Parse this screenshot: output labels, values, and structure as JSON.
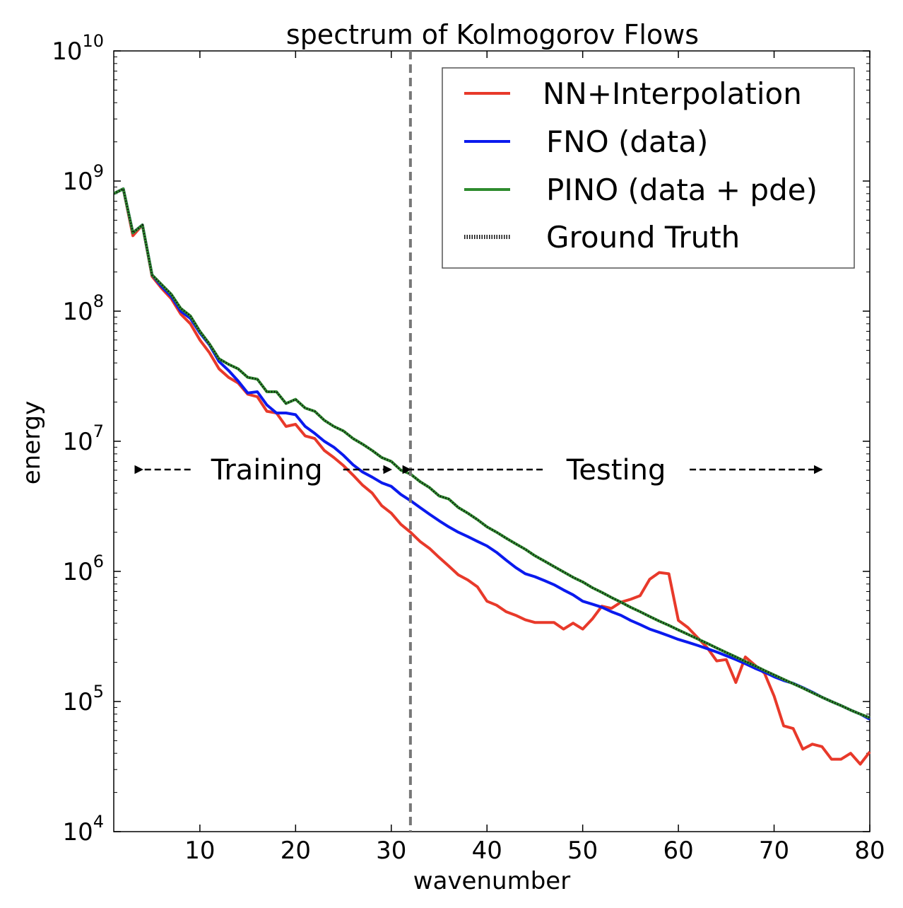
{
  "chart_data": {
    "type": "line",
    "title": "spectrum of Kolmogorov Flows",
    "xlabel": "wavenumber",
    "ylabel": "energy",
    "xlim": [
      1,
      80
    ],
    "ylim": [
      10000,
      10000000000
    ],
    "yscale": "log",
    "x_ticks": [
      10,
      20,
      30,
      40,
      50,
      60,
      70,
      80
    ],
    "y_ticks": [
      {
        "base": "10",
        "exp": "4",
        "value": 10000
      },
      {
        "base": "10",
        "exp": "5",
        "value": 100000
      },
      {
        "base": "10",
        "exp": "6",
        "value": 1000000
      },
      {
        "base": "10",
        "exp": "7",
        "value": 10000000
      },
      {
        "base": "10",
        "exp": "8",
        "value": 100000000
      },
      {
        "base": "10",
        "exp": "9",
        "value": 1000000000
      },
      {
        "base": "10",
        "exp": "10",
        "value": 10000000000
      }
    ],
    "legend_position": "top-right",
    "divider_x": 32,
    "annotations": {
      "training_label": "Training",
      "testing_label": "Testing",
      "training_range": [
        4,
        30
      ],
      "testing_range": [
        32,
        75
      ],
      "y_value": 6000000
    },
    "x": [
      1,
      2,
      3,
      4,
      5,
      6,
      7,
      8,
      9,
      10,
      11,
      12,
      13,
      14,
      15,
      16,
      17,
      18,
      19,
      20,
      21,
      22,
      23,
      24,
      25,
      26,
      27,
      28,
      29,
      30,
      31,
      32,
      33,
      34,
      35,
      36,
      37,
      38,
      39,
      40,
      41,
      42,
      43,
      44,
      45,
      46,
      47,
      48,
      49,
      50,
      51,
      52,
      53,
      54,
      55,
      56,
      57,
      58,
      59,
      60,
      61,
      62,
      63,
      64,
      65,
      66,
      67,
      68,
      69,
      70,
      71,
      72,
      73,
      74,
      75,
      76,
      77,
      78,
      79,
      80
    ],
    "series": [
      {
        "name": "NN+Interpolation",
        "color": "#e8392a",
        "style": "solid",
        "values": [
          800000000,
          870000000,
          380000000,
          460000000,
          185000000,
          150000000,
          125000000,
          95000000,
          80000000,
          60000000,
          48000000,
          36000000,
          31000000,
          28000000,
          23000000,
          22000000,
          17000000,
          16500000,
          13000000,
          13500000,
          11000000,
          10500000,
          8500000,
          7500000,
          6500000,
          5500000,
          4600000,
          4000000,
          3200000,
          2800000,
          2300000,
          2000000,
          1700000,
          1500000,
          1280000,
          1100000,
          940000,
          860000,
          760000,
          590000,
          550000,
          490000,
          460000,
          425000,
          405000,
          405000,
          405000,
          360000,
          400000,
          360000,
          430000,
          540000,
          520000,
          580000,
          610000,
          650000,
          870000,
          980000,
          960000,
          420000,
          370000,
          310000,
          260000,
          205000,
          210000,
          140000,
          220000,
          190000,
          165000,
          110000,
          65000,
          62000,
          43000,
          47000,
          45000,
          36000,
          36000,
          40000,
          33000,
          41000
        ]
      },
      {
        "name": "FNO (data)",
        "color": "#0a1aee",
        "style": "solid",
        "values": [
          800000000,
          870000000,
          400000000,
          460000000,
          190000000,
          155000000,
          130000000,
          100000000,
          88000000,
          68000000,
          55000000,
          41000000,
          35000000,
          29000000,
          23500000,
          24000000,
          19000000,
          16500000,
          16500000,
          16000000,
          13000000,
          11500000,
          10000000,
          9000000,
          7800000,
          6600000,
          5800000,
          5300000,
          4800000,
          4500000,
          3900000,
          3500000,
          3100000,
          2750000,
          2450000,
          2200000,
          2000000,
          1850000,
          1700000,
          1570000,
          1400000,
          1220000,
          1070000,
          960000,
          910000,
          850000,
          790000,
          720000,
          660000,
          590000,
          560000,
          530000,
          490000,
          460000,
          420000,
          390000,
          360000,
          340000,
          320000,
          300000,
          285000,
          270000,
          255000,
          240000,
          225000,
          210000,
          195000,
          180000,
          168000,
          155000,
          145000,
          138000,
          128000,
          118000,
          108000,
          100000,
          93000,
          86000,
          80000,
          73000
        ]
      },
      {
        "name": "PINO (data + pde)",
        "color": "#2e8b2e",
        "style": "solid",
        "values": [
          800000000,
          870000000,
          400000000,
          460000000,
          190000000,
          160000000,
          135000000,
          105000000,
          92000000,
          70000000,
          56000000,
          43000000,
          39000000,
          36000000,
          31000000,
          30000000,
          24000000,
          24000000,
          19500000,
          21000000,
          18000000,
          17000000,
          14500000,
          13000000,
          12000000,
          10500000,
          9500000,
          8500000,
          7500000,
          7000000,
          6000000,
          5600000,
          4900000,
          4400000,
          3800000,
          3600000,
          3100000,
          2800000,
          2500000,
          2200000,
          2000000,
          1800000,
          1630000,
          1480000,
          1320000,
          1200000,
          1090000,
          990000,
          900000,
          830000,
          750000,
          690000,
          630000,
          580000,
          530000,
          490000,
          450000,
          415000,
          385000,
          355000,
          328000,
          303000,
          280000,
          258000,
          238000,
          220000,
          203000,
          188000,
          173000,
          160000,
          148000,
          137000,
          127000,
          117000,
          108000,
          100000,
          93000,
          86000,
          80000,
          75000
        ]
      },
      {
        "name": "Ground Truth",
        "color": "#111111",
        "style": "dotted",
        "values": [
          800000000,
          870000000,
          400000000,
          460000000,
          190000000,
          160000000,
          135000000,
          105000000,
          92000000,
          70000000,
          56000000,
          43000000,
          39000000,
          36000000,
          31000000,
          30000000,
          24000000,
          24000000,
          19500000,
          21000000,
          18000000,
          17000000,
          14500000,
          13000000,
          12000000,
          10500000,
          9500000,
          8500000,
          7500000,
          7000000,
          6000000,
          5600000,
          4900000,
          4400000,
          3800000,
          3600000,
          3100000,
          2800000,
          2500000,
          2200000,
          2000000,
          1800000,
          1630000,
          1480000,
          1320000,
          1200000,
          1090000,
          990000,
          900000,
          830000,
          750000,
          690000,
          630000,
          580000,
          530000,
          490000,
          450000,
          415000,
          385000,
          355000,
          328000,
          303000,
          280000,
          258000,
          238000,
          220000,
          203000,
          188000,
          173000,
          160000,
          148000,
          137000,
          127000,
          117000,
          108000,
          100000,
          93000,
          86000,
          80000,
          75000
        ]
      }
    ]
  }
}
